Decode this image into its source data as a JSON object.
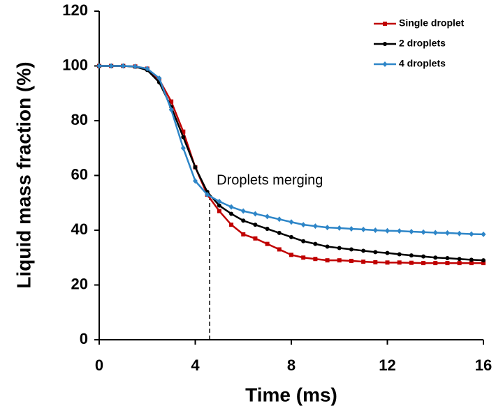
{
  "chart_data": {
    "type": "line",
    "xlabel": "Time (ms)",
    "ylabel": "Liquid mass fraction (%)",
    "x": [
      0,
      0.5,
      1,
      1.5,
      2,
      2.5,
      3,
      3.5,
      4,
      4.5,
      5,
      5.5,
      6,
      6.5,
      7,
      7.5,
      8,
      8.5,
      9,
      9.5,
      10,
      10.5,
      11,
      11.5,
      12,
      12.5,
      13,
      13.5,
      14,
      14.5,
      15,
      15.5,
      16
    ],
    "series": [
      {
        "name": "Single droplet",
        "color": "#c00000",
        "marker": "square",
        "values": [
          100,
          100,
          100,
          99.8,
          99,
          95,
          87,
          76,
          63,
          53,
          47,
          42,
          38.5,
          37,
          35,
          33,
          31,
          30,
          29.5,
          29,
          29,
          28.8,
          28.5,
          28.3,
          28.2,
          28.2,
          28.1,
          28,
          28,
          28,
          28,
          28,
          28
        ]
      },
      {
        "name": "2 droplets",
        "color": "#000000",
        "marker": "circle",
        "values": [
          100,
          100,
          100,
          99.7,
          98.5,
          94,
          85,
          74,
          63,
          54,
          49,
          46,
          43.5,
          42,
          40.5,
          39,
          37.5,
          36,
          35,
          34,
          33.5,
          33,
          32.5,
          32,
          31.7,
          31.2,
          30.8,
          30.4,
          30,
          29.8,
          29.5,
          29.2,
          29
        ]
      },
      {
        "name": "4 droplets",
        "color": "#2e86c8",
        "marker": "diamond",
        "values": [
          100,
          100,
          100,
          99.8,
          99,
          95.5,
          84,
          70,
          58,
          53,
          50.5,
          48.5,
          47,
          46,
          45,
          44,
          43,
          42,
          41.5,
          41,
          40.8,
          40.5,
          40.3,
          40,
          39.8,
          39.7,
          39.5,
          39.3,
          39.1,
          39,
          38.8,
          38.6,
          38.5
        ]
      }
    ],
    "annotations": [
      {
        "text": "Droplets merging",
        "x": 4.6,
        "y": 53
      }
    ],
    "xlim": [
      0,
      16
    ],
    "xticks": [
      0,
      4,
      8,
      12,
      16
    ],
    "ylim": [
      0,
      120
    ],
    "yticks": [
      0,
      20,
      40,
      60,
      80,
      100,
      120
    ],
    "grid": false,
    "legend": "upper right"
  }
}
